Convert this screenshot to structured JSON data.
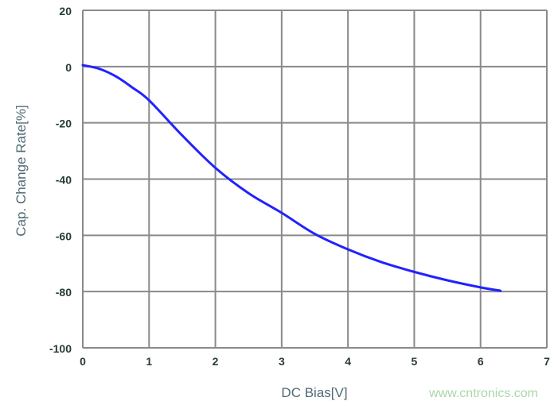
{
  "chart_data": {
    "type": "line",
    "title": "",
    "xlabel": "DC Bias[V]",
    "ylabel": "Cap. Change Rate[%]",
    "xlim": [
      0,
      7
    ],
    "ylim": [
      -100,
      20
    ],
    "xticks": [
      "0",
      "1",
      "2",
      "3",
      "4",
      "5",
      "6",
      "7"
    ],
    "yticks": [
      "20",
      "0",
      "-20",
      "-40",
      "-60",
      "-80",
      "-100"
    ],
    "grid": true,
    "series": [
      {
        "color": "#2222ff",
        "x": [
          0,
          0.25,
          0.5,
          0.75,
          1,
          1.5,
          2,
          2.5,
          3,
          3.5,
          4,
          4.5,
          5,
          5.5,
          6,
          6.3
        ],
        "y": [
          0.5,
          -0.8,
          -3.5,
          -7.5,
          -12,
          -24.5,
          -36,
          -45,
          -52,
          -59.5,
          -65,
          -69.5,
          -73,
          -76,
          -78.5,
          -79.7
        ]
      }
    ]
  },
  "watermark": "www.cntronics.com",
  "colors": {
    "grid": "#8a8a8a",
    "line": "#2222ff",
    "axis_label": "#4f6b73"
  }
}
